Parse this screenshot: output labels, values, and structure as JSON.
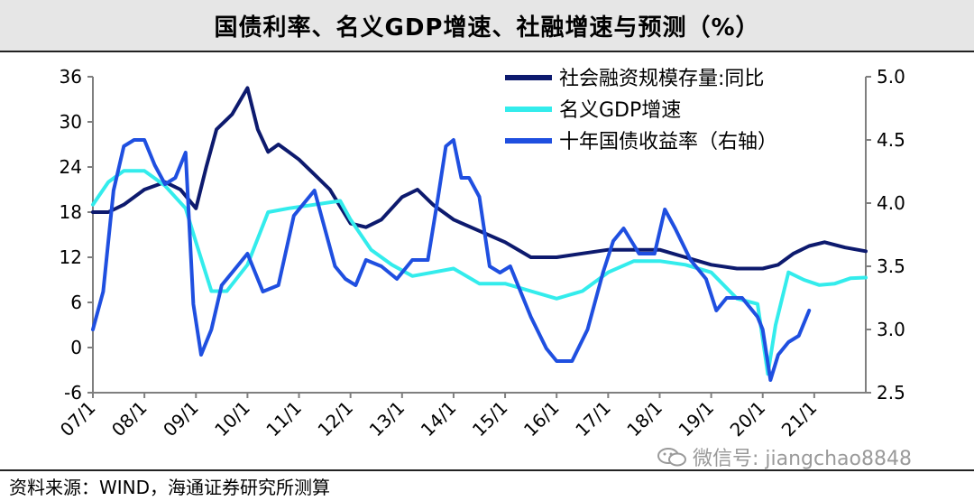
{
  "header": {
    "title": "国债利率、名义GDP增速、社融增速与预测（%）"
  },
  "footer": {
    "source": "资料来源：WIND，海通证券研究所测算"
  },
  "watermark": {
    "text": "微信号: jiangchao8848"
  },
  "colors": {
    "social_financing": "#0d1a6e",
    "nominal_gdp": "#33ecec",
    "treasury_yield": "#1f4fe0"
  },
  "chart_data": {
    "type": "line",
    "title": "国债利率、名义GDP增速、社融增速与预测（%）",
    "x_tick_labels": [
      "07/1",
      "08/1",
      "09/1",
      "10/1",
      "11/1",
      "12/1",
      "13/1",
      "14/1",
      "15/1",
      "16/1",
      "17/1",
      "18/1",
      "19/1",
      "20/1",
      "21/1"
    ],
    "x_range": [
      2007.0,
      2022.0
    ],
    "y_left": {
      "range": [
        -6,
        36
      ],
      "ticks": [
        -6,
        0,
        6,
        12,
        18,
        24,
        30,
        36
      ]
    },
    "y_right": {
      "range": [
        2.5,
        5.0
      ],
      "ticks": [
        "2.5",
        "3.0",
        "3.5",
        "4.0",
        "4.5",
        "5.0"
      ]
    },
    "legend": [
      "社会融资规模存量:同比",
      "名义GDP增速",
      "十年国债收益率（右轴）"
    ],
    "series": [
      {
        "name": "社会融资规模存量:同比",
        "axis": "left",
        "x": [
          2007.0,
          2007.3,
          2007.6,
          2008.0,
          2008.4,
          2008.7,
          2009.0,
          2009.2,
          2009.4,
          2009.7,
          2010.0,
          2010.2,
          2010.4,
          2010.6,
          2010.8,
          2011.0,
          2011.3,
          2011.6,
          2012.0,
          2012.3,
          2012.6,
          2013.0,
          2013.3,
          2013.6,
          2014.0,
          2014.5,
          2015.0,
          2015.5,
          2016.0,
          2016.5,
          2017.0,
          2017.5,
          2018.0,
          2018.5,
          2019.0,
          2019.5,
          2020.0,
          2020.3,
          2020.6,
          2020.9,
          2021.2,
          2021.6,
          2022.0
        ],
        "y": [
          18,
          18,
          19,
          21,
          22,
          21,
          18.5,
          24,
          29,
          31,
          34.5,
          29,
          26,
          27,
          26,
          25,
          23,
          21,
          16.5,
          16,
          17,
          20,
          21,
          19,
          17,
          15.5,
          14,
          12,
          12,
          12.5,
          13,
          13,
          13,
          12,
          11,
          10.5,
          10.5,
          11,
          12.5,
          13.5,
          14,
          13.3,
          12.8
        ]
      },
      {
        "name": "名义GDP增速",
        "axis": "left",
        "x": [
          2007.0,
          2007.3,
          2007.6,
          2008.0,
          2008.4,
          2008.8,
          2009.0,
          2009.3,
          2009.6,
          2010.0,
          2010.4,
          2010.8,
          2011.3,
          2011.8,
          2012.0,
          2012.4,
          2012.8,
          2013.2,
          2013.6,
          2014.0,
          2014.5,
          2015.0,
          2015.5,
          2016.0,
          2016.5,
          2017.0,
          2017.5,
          2018.0,
          2018.5,
          2019.0,
          2019.5,
          2019.9,
          2020.1,
          2020.25,
          2020.5,
          2020.8,
          2021.1,
          2021.4,
          2021.7,
          2022.0
        ],
        "y": [
          19,
          22,
          23.5,
          23.5,
          21.5,
          18.5,
          14,
          7.5,
          7.5,
          11,
          18,
          18.5,
          19,
          19.5,
          17,
          13,
          11,
          9.5,
          10,
          10.5,
          8.5,
          8.5,
          7.5,
          6.5,
          7.5,
          10,
          11.5,
          11.5,
          11,
          10,
          6.5,
          5.8,
          -3.5,
          3,
          10,
          9,
          8.3,
          8.5,
          9.2,
          9.3
        ]
      },
      {
        "name": "十年国债收益率（右轴）",
        "axis": "right",
        "x": [
          2007.0,
          2007.2,
          2007.4,
          2007.6,
          2007.8,
          2008.0,
          2008.2,
          2008.4,
          2008.6,
          2008.8,
          2008.95,
          2009.1,
          2009.3,
          2009.5,
          2009.7,
          2010.0,
          2010.3,
          2010.6,
          2010.9,
          2011.1,
          2011.3,
          2011.5,
          2011.7,
          2011.9,
          2012.1,
          2012.3,
          2012.6,
          2012.9,
          2013.2,
          2013.5,
          2013.7,
          2013.85,
          2014.0,
          2014.15,
          2014.3,
          2014.5,
          2014.7,
          2014.9,
          2015.1,
          2015.3,
          2015.5,
          2015.8,
          2016.0,
          2016.3,
          2016.6,
          2016.9,
          2017.1,
          2017.3,
          2017.6,
          2017.9,
          2018.1,
          2018.3,
          2018.6,
          2018.9,
          2019.1,
          2019.3,
          2019.6,
          2019.9,
          2020.0,
          2020.15,
          2020.3,
          2020.5,
          2020.7,
          2020.9
        ],
        "y": [
          3.0,
          3.3,
          4.1,
          4.45,
          4.5,
          4.5,
          4.3,
          4.15,
          4.2,
          4.4,
          3.2,
          2.8,
          3.0,
          3.35,
          3.45,
          3.6,
          3.3,
          3.35,
          3.9,
          4.0,
          4.1,
          3.8,
          3.5,
          3.4,
          3.35,
          3.55,
          3.5,
          3.4,
          3.55,
          3.55,
          4.05,
          4.45,
          4.5,
          4.2,
          4.2,
          4.05,
          3.5,
          3.45,
          3.5,
          3.3,
          3.1,
          2.85,
          2.75,
          2.75,
          3.0,
          3.45,
          3.7,
          3.8,
          3.6,
          3.6,
          3.95,
          3.8,
          3.55,
          3.4,
          3.15,
          3.25,
          3.25,
          3.1,
          3.0,
          2.6,
          2.8,
          2.9,
          2.95,
          3.15
        ]
      }
    ]
  }
}
